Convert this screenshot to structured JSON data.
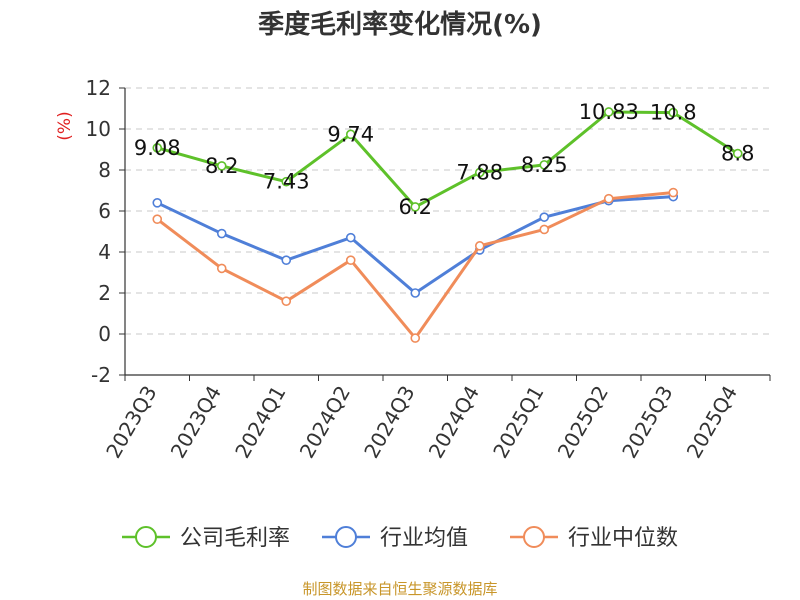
{
  "page": {
    "title": "季度毛利率变化情况(%)",
    "source": "制图数据来自恒生聚源数据库"
  },
  "chart_data": {
    "type": "line",
    "title": "季度毛利率变化情况(%)",
    "ylabel": "(%)",
    "ylim": [
      -2,
      12
    ],
    "yticks": [
      -2,
      0,
      2,
      4,
      6,
      8,
      10,
      12
    ],
    "grid": true,
    "legend_position": "bottom",
    "categories": [
      "2023Q3",
      "2023Q4",
      "2024Q1",
      "2024Q2",
      "2024Q3",
      "2024Q4",
      "2025Q1",
      "2025Q2",
      "2025Q3",
      "2025Q4"
    ],
    "series": [
      {
        "name": "公司毛利率",
        "color": "#5ec12a",
        "labels": true,
        "values": [
          9.08,
          8.2,
          7.43,
          9.74,
          6.2,
          7.88,
          8.25,
          10.83,
          10.8,
          8.8
        ]
      },
      {
        "name": "行业均值",
        "color": "#4f7fd8",
        "labels": false,
        "values": [
          6.4,
          4.9,
          3.6,
          4.7,
          2.0,
          4.1,
          5.7,
          6.5,
          6.7,
          null
        ]
      },
      {
        "name": "行业中位数",
        "color": "#f08c5a",
        "labels": false,
        "values": [
          5.6,
          3.2,
          1.6,
          3.6,
          -0.2,
          4.3,
          5.1,
          6.6,
          6.9,
          null
        ]
      }
    ]
  }
}
